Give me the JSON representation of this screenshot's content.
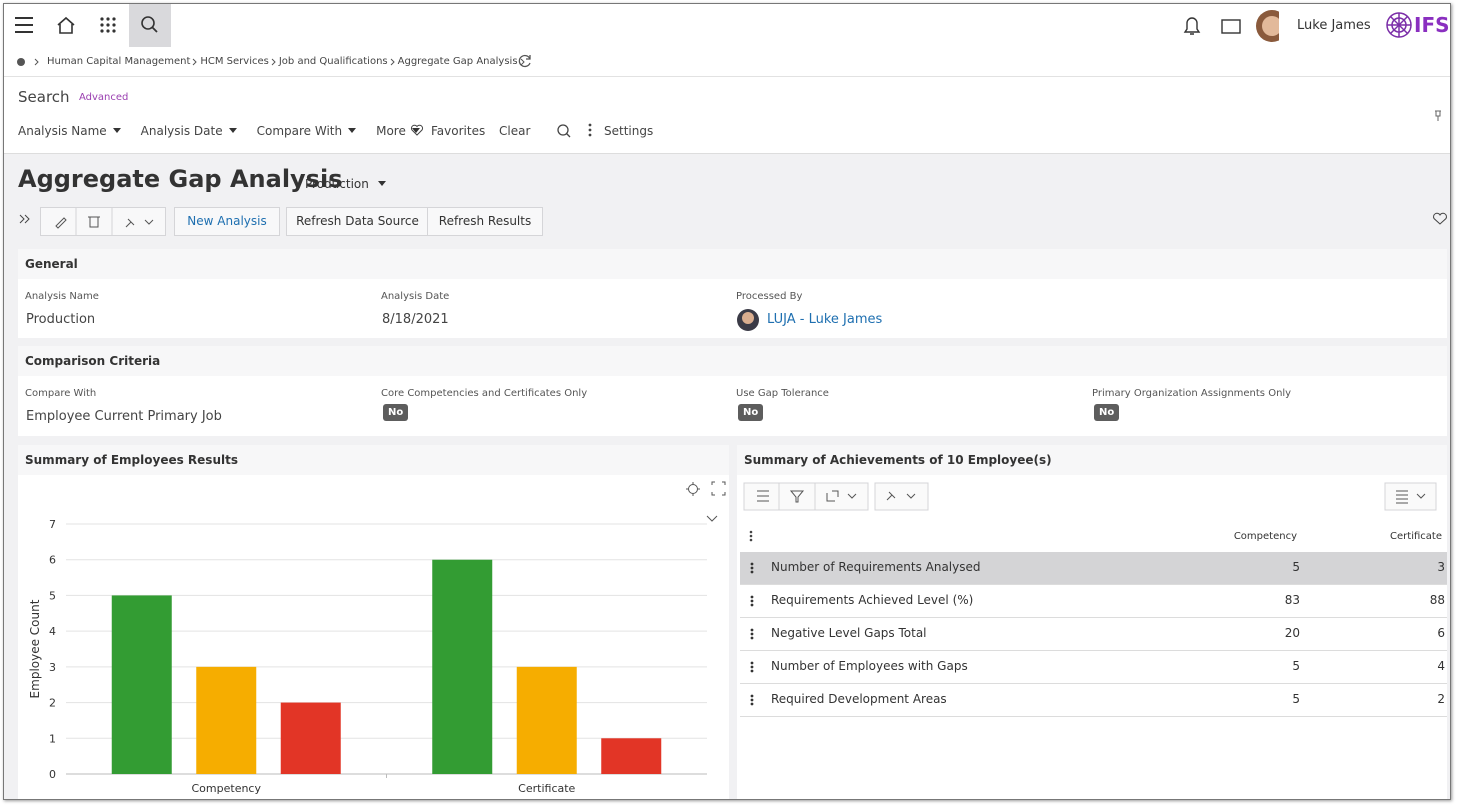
{
  "topbar": {
    "user": "Luke James",
    "logo": "IFS"
  },
  "breadcrumb": [
    "Human Capital Management",
    "HCM Services",
    "Job and Qualifications",
    "Aggregate Gap Analysis"
  ],
  "search": {
    "title": "Search",
    "advanced": "Advanced",
    "filters": [
      "Analysis Name",
      "Analysis Date",
      "Compare With",
      "More"
    ],
    "favorites": "Favorites",
    "clear": "Clear",
    "settings": "Settings"
  },
  "page": {
    "title": "Aggregate Gap Analysis",
    "context": "Production",
    "buttons": [
      "New Analysis",
      "Refresh Data Source",
      "Refresh Results"
    ]
  },
  "general": {
    "title": "General",
    "fields": [
      {
        "label": "Analysis Name",
        "value": "Production"
      },
      {
        "label": "Analysis Date",
        "value": "8/18/2021"
      },
      {
        "label": "Processed By",
        "value": "LUJA - Luke James"
      }
    ]
  },
  "comparison": {
    "title": "Comparison Criteria",
    "fields": [
      {
        "label": "Compare With",
        "value": "Employee Current Primary Job"
      },
      {
        "label": "Core Competencies and Certificates Only",
        "value": "No"
      },
      {
        "label": "Use Gap Tolerance",
        "value": "No"
      },
      {
        "label": "Primary Organization Assignments Only",
        "value": "No"
      }
    ]
  },
  "chart_data": {
    "type": "bar",
    "title": "Summary of Employees Results",
    "y_label": "Employee Count",
    "categories": [
      "Competency",
      "Certificate"
    ],
    "series": [
      {
        "color": "#339c33",
        "values": [
          5,
          6
        ]
      },
      {
        "color": "#f6ad00",
        "values": [
          3,
          3
        ]
      },
      {
        "color": "#e23526",
        "values": [
          2,
          1
        ]
      }
    ],
    "ylim": [
      0,
      7
    ],
    "yticks": [
      0,
      1,
      2,
      3,
      4,
      5,
      6,
      7
    ],
    "grid": true
  },
  "table": {
    "title": "Summary of Achievements of 10 Employee(s)",
    "columns": [
      "Competency",
      "Certificate"
    ],
    "rows": [
      {
        "label": "Number of Requirements Analysed",
        "values": [
          5,
          3
        ]
      },
      {
        "label": "Requirements Achieved Level (%)",
        "values": [
          83,
          88
        ]
      },
      {
        "label": "Negative Level Gaps Total",
        "values": [
          20,
          6
        ]
      },
      {
        "label": "Number of Employees with Gaps",
        "values": [
          5,
          4
        ]
      },
      {
        "label": "Required Development Areas",
        "values": [
          5,
          2
        ]
      }
    ]
  }
}
